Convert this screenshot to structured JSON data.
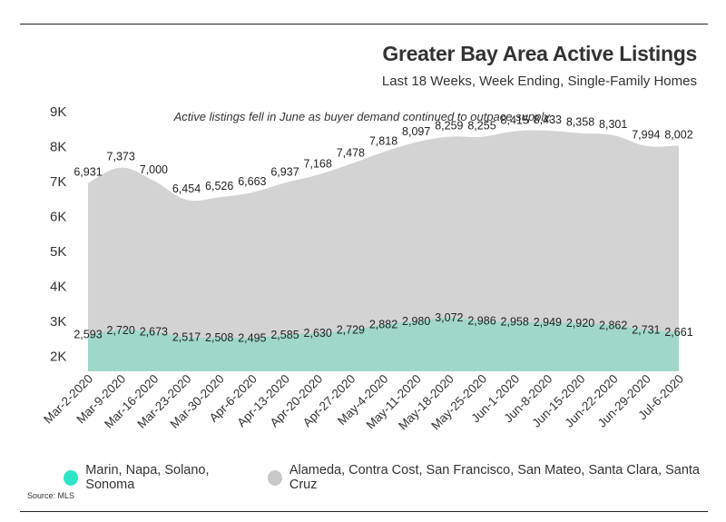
{
  "header": {
    "title": "Greater Bay Area Active Listings",
    "subtitle": "Last 18 Weeks, Week Ending, Single-Family Homes",
    "annotation": "Active listings fell in June as buyer demand continued to outpace supply."
  },
  "source": "Source: MLS",
  "chart_data": {
    "type": "area",
    "title": "Greater Bay Area Active Listings",
    "subtitle": "Last 18 Weeks, Week Ending, Single-Family Homes",
    "categories": [
      "Mar-2-2020",
      "Mar-9-2020",
      "Mar-16-2020",
      "Mar-23-2020",
      "Mar-30-2020",
      "Apr-6-2020",
      "Apr-13-2020",
      "Apr-20-2020",
      "Apr-27-2020",
      "May-4-2020",
      "May-11-2020",
      "May-18-2020",
      "May-25-2020",
      "Jun-1-2020",
      "Jun-8-2020",
      "Jun-15-2020",
      "Jun-22-2020",
      "Jun-29-2020",
      "Jul-6-2020"
    ],
    "series": [
      {
        "name": "Marin, Napa, Solano, Sonoma",
        "color": "#9fd8c9",
        "legend_color": "#2ee6c6",
        "values": [
          2593,
          2720,
          2673,
          2517,
          2508,
          2495,
          2585,
          2630,
          2729,
          2882,
          2980,
          3072,
          2986,
          2958,
          2949,
          2920,
          2862,
          2731,
          2661
        ],
        "labels": [
          "2,593",
          "2,720",
          "2,673",
          "2,517",
          "2,508",
          "2,495",
          "2,585",
          "2,630",
          "2,729",
          "2,882",
          "2,980",
          "3,072",
          "2,986",
          "2,958",
          "2,949",
          "2,920",
          "2,862",
          "2,731",
          "2,661"
        ]
      },
      {
        "name": "Alameda, Contra Cost, San Francisco, San Mateo, Santa Clara, Santa Cruz",
        "color": "#d3d3d3",
        "legend_color": "#c8c8c8",
        "values": [
          6931,
          7373,
          7000,
          6454,
          6526,
          6663,
          6937,
          7168,
          7478,
          7818,
          8097,
          8259,
          8255,
          8415,
          8433,
          8358,
          8301,
          7994,
          8002
        ],
        "labels": [
          "6,931",
          "7,373",
          "7,000",
          "6,454",
          "6,526",
          "6,663",
          "6,937",
          "7,168",
          "7,478",
          "7,818",
          "8,097",
          "8,259",
          "8,255",
          "8,415",
          "8,433",
          "8,358",
          "8,301",
          "7,994",
          "8,002"
        ]
      }
    ],
    "y_ticks": [
      "2K",
      "3K",
      "4K",
      "5K",
      "6K",
      "7K",
      "8K",
      "9K"
    ],
    "ylim": [
      1500,
      9000
    ],
    "grid": false,
    "legend_position": "bottom"
  }
}
